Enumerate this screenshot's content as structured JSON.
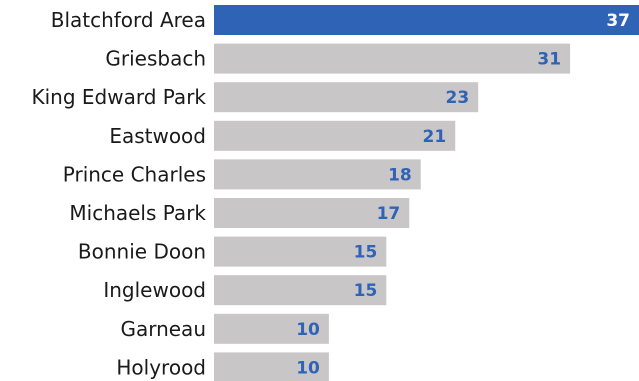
{
  "chart_data": {
    "type": "bar",
    "orientation": "horizontal",
    "categories": [
      "Blatchford Area",
      "Griesbach",
      "King Edward Park",
      "Eastwood",
      "Prince Charles",
      "Michaels Park",
      "Bonnie Doon",
      "Inglewood",
      "Garneau",
      "Holyrood"
    ],
    "values": [
      37,
      31,
      23,
      21,
      18,
      17,
      15,
      15,
      10,
      10
    ],
    "title": "",
    "xlabel": "",
    "ylabel": "",
    "xlim": [
      0,
      37
    ],
    "grid": false,
    "legend": "none",
    "data_labels": true,
    "colors": {
      "highlight_bar": "#2f63b5",
      "bar": "#c9c6c8",
      "highlight_label": "#ffffff",
      "label": "#2f63b5"
    }
  }
}
